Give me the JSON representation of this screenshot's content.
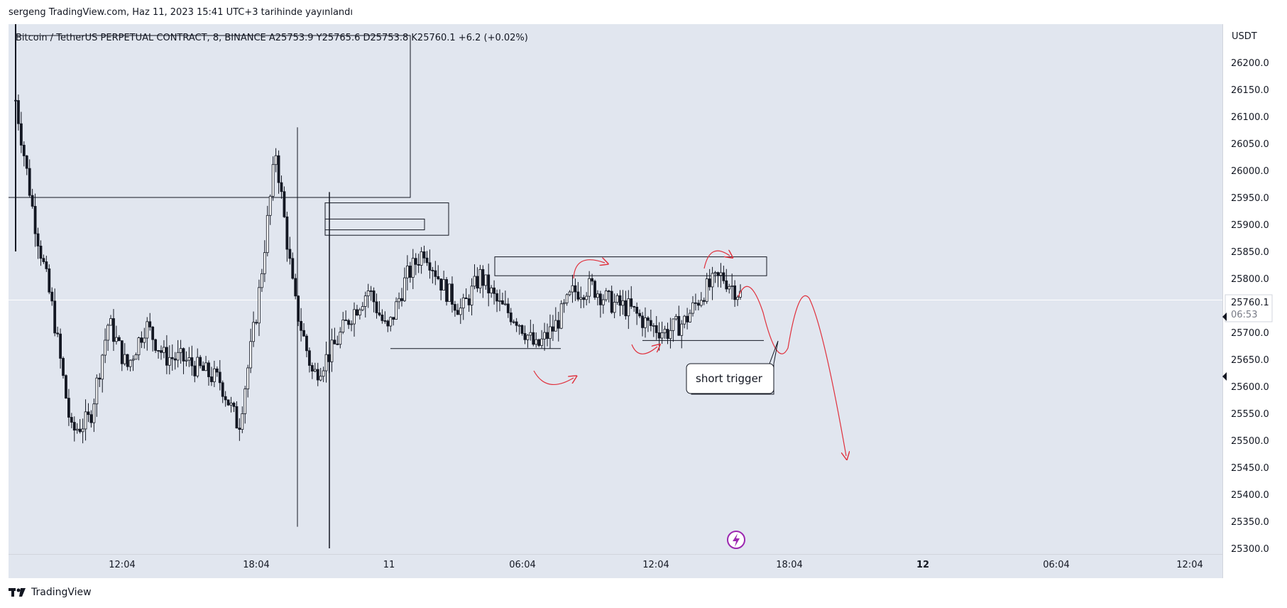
{
  "header": {
    "text": "sergeng TradingView.com, Haz 11, 2023 15:41 UTC+3 tarihinde yayınlandı"
  },
  "legend": {
    "text": "Bitcoin / TetherUS PERPETUAL CONTRACT, 8, BINANCE  A25753.9  Y25765.6  D25753.8  K25760.1  +6.2 (+0.02%)"
  },
  "footer": {
    "brand": "TradingView",
    "logo_icon": "tradingview-logo-icon"
  },
  "price_axis": {
    "currency": "USDT"
  },
  "last_price": {
    "value": "25760.1",
    "countdown": "06:53"
  },
  "annotation": {
    "text": "short trigger"
  },
  "colors": {
    "candle": "#131722",
    "arrow": "#e0303c",
    "background": "#e1e6ef",
    "lightning": "#9c27b0"
  },
  "chart_data": {
    "type": "candlestick",
    "ylim": [
      25300,
      26250
    ],
    "yticks": [
      26200,
      26150,
      26100,
      26050,
      26000,
      25950,
      25900,
      25850,
      25800,
      25750,
      25700,
      25650,
      25600,
      25550,
      25500,
      25450,
      25400,
      25350,
      25300
    ],
    "xticks": [
      {
        "label": "12:04",
        "bold": false
      },
      {
        "label": "18:04",
        "bold": false
      },
      {
        "label": "11",
        "bold": false
      },
      {
        "label": "06:04",
        "bold": false
      },
      {
        "label": "12:04",
        "bold": false
      },
      {
        "label": "18:04",
        "bold": false
      },
      {
        "label": "12",
        "bold": true
      },
      {
        "label": "06:04",
        "bold": false
      },
      {
        "label": "12:04",
        "bold": false
      }
    ],
    "key_points": [
      [
        25960,
        26300
      ],
      [
        25920,
        25900
      ],
      [
        25780,
        25700
      ],
      [
        25560,
        25470
      ],
      [
        25560,
        25520
      ],
      [
        25700,
        25740
      ],
      [
        25660,
        25610
      ],
      [
        25740,
        25690
      ],
      [
        25670,
        25640
      ],
      [
        25680,
        25620
      ],
      [
        25650,
        25610
      ],
      [
        25620,
        25600
      ],
      [
        25530,
        25520
      ],
      [
        25700,
        25790
      ],
      [
        25950,
        26120
      ],
      [
        25920,
        25600
      ],
      [
        25700,
        25540
      ],
      [
        25680,
        25650
      ],
      [
        25700,
        25760
      ],
      [
        25820,
        25740
      ],
      [
        25720,
        25680
      ],
      [
        25780,
        25820
      ],
      [
        25870,
        25840
      ],
      [
        25800,
        25770
      ],
      [
        25720,
        25760
      ],
      [
        25820,
        25790
      ],
      [
        25760,
        25740
      ],
      [
        25740,
        25710
      ],
      [
        25680,
        25660
      ],
      [
        25700,
        25720
      ],
      [
        25760,
        25790
      ],
      [
        25800,
        25770
      ],
      [
        25770,
        25740
      ],
      [
        25760,
        25730
      ],
      [
        25710,
        25720
      ],
      [
        25690,
        25710
      ],
      [
        25700,
        25740
      ],
      [
        25760,
        25790
      ],
      [
        25820,
        25790
      ],
      [
        25780,
        25760
      ]
    ],
    "rectangles": [
      {
        "x1": 0,
        "x2": 0.5,
        "y_top": 26250,
        "y_bottom": 25950
      },
      {
        "x1": 0.5,
        "x2": 0.53,
        "y_top": 25940,
        "y_bottom": 25880
      },
      {
        "x1": 0.5,
        "x2": 0.52,
        "y_top": 25910,
        "y_bottom": 25890
      },
      {
        "x1": 0.53,
        "x2": 0.57,
        "y_top": 25840,
        "y_bottom": 25805
      }
    ],
    "support_lines": [
      25670,
      25685
    ]
  }
}
